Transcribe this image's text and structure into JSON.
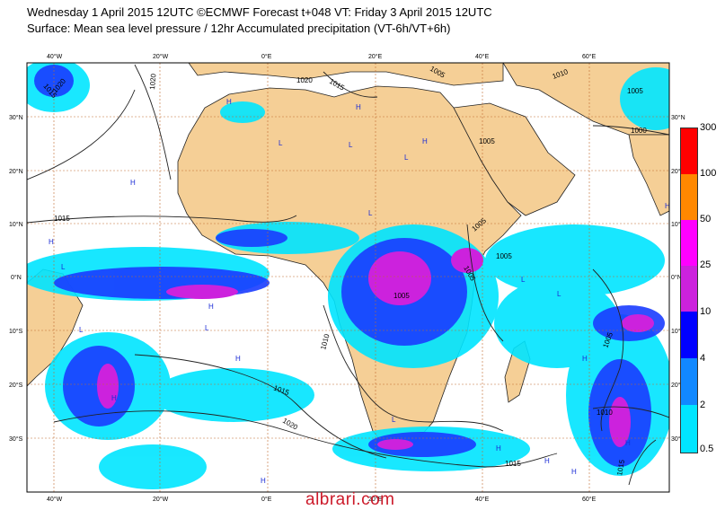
{
  "header": {
    "line1": "Wednesday 1 April 2015 12UTC ©ECMWF Forecast t+048 VT: Friday 3 April 2015 12UTC",
    "line2": "Surface: Mean sea level pressure / 12hr Accumulated precipitation (VT-6h/VT+6h)"
  },
  "map": {
    "lon_labels": [
      "40°W",
      "20°W",
      "0°E",
      "20°E",
      "40°E",
      "60°E"
    ],
    "lat_labels": [
      "30°N",
      "20°N",
      "10°N",
      "0°N",
      "10°S",
      "20°S",
      "30°S"
    ],
    "isobar_labels": [
      "1015",
      "1020",
      "1020",
      "1020",
      "1015",
      "1005",
      "1010",
      "1005",
      "1000",
      "1005",
      "1015",
      "1005",
      "1005",
      "1005",
      "1005",
      "1010",
      "1015",
      "1020",
      "1005",
      "1010",
      "1015",
      "1015"
    ],
    "pressure_centers": [
      "H",
      "H",
      "H",
      "L",
      "L",
      "L",
      "L",
      "H",
      "H",
      "L",
      "H",
      "L",
      "L",
      "H",
      "H",
      "L",
      "H",
      "H",
      "H",
      "H",
      "H",
      "L",
      "H",
      "H",
      "L"
    ]
  },
  "legend": {
    "labels": [
      "300",
      "100",
      "50",
      "25",
      "10",
      "4",
      "2",
      "0.5"
    ],
    "colors": [
      "#ff0000",
      "#ff8800",
      "#ff00ff",
      "#cc22dd",
      "#0000ff",
      "#3355ff",
      "#1188ff",
      "#00e5ff"
    ]
  },
  "watermark": "albrari.com",
  "colors": {
    "land": "#f5cf96",
    "ocean": "#ffffff",
    "precip_light": "#00e5ff",
    "precip_mid": "#1166ff",
    "precip_heavy": "#2200cc",
    "precip_extreme": "#cc22dd",
    "grid": "#c06a30"
  }
}
